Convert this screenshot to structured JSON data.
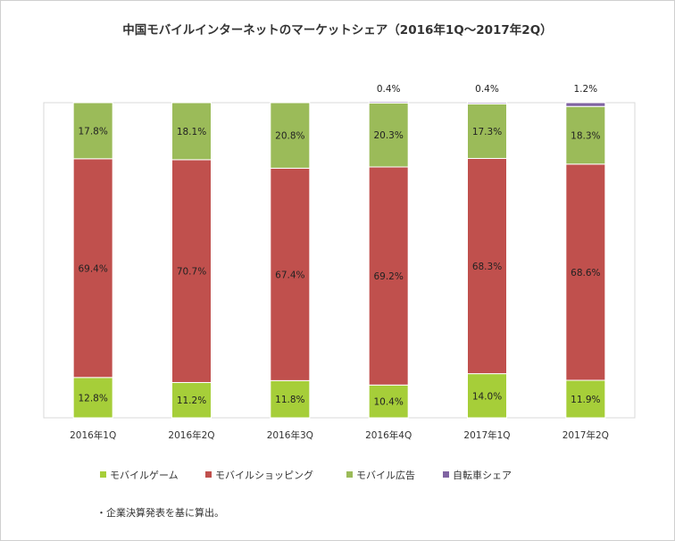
{
  "chart_data": {
    "type": "bar",
    "stacked": true,
    "title": "中国モバイルインターネットのマーケットシェア（2016年1Q～2017年2Q）",
    "categories": [
      "2016年1Q",
      "2016年2Q",
      "2016年3Q",
      "2016年4Q",
      "2017年1Q",
      "2017年2Q"
    ],
    "series": [
      {
        "name": "モバイルゲーム",
        "color": "#a6ce39",
        "values": [
          12.8,
          11.2,
          11.8,
          10.4,
          14.0,
          11.9
        ],
        "labels": [
          "12.8%",
          "11.2%",
          "11.8%",
          "10.4%",
          "14.0%",
          "11.9%"
        ]
      },
      {
        "name": "モバイルショッピング",
        "color": "#c0504d",
        "values": [
          69.4,
          70.7,
          67.4,
          69.2,
          68.3,
          68.6
        ],
        "labels": [
          "69.4%",
          "70.7%",
          "67.4%",
          "69.2%",
          "68.3%",
          "68.6%"
        ]
      },
      {
        "name": "モバイル広告",
        "color": "#9bbb59",
        "values": [
          17.8,
          18.1,
          20.8,
          20.3,
          17.3,
          18.3
        ],
        "labels": [
          "17.8%",
          "18.1%",
          "20.8%",
          "20.3%",
          "17.3%",
          "18.3%"
        ]
      },
      {
        "name": "自転車シェア",
        "color": "#8064a2",
        "values": [
          0,
          0,
          0,
          0.4,
          0.4,
          1.2
        ],
        "labels": [
          "",
          "",
          "",
          "0.4%",
          "0.4%",
          "1.2%"
        ]
      }
    ],
    "ylim": [
      0,
      100
    ],
    "grid": false,
    "legend_position": "bottom"
  },
  "footnote": "・企業決算発表を基に算出。"
}
